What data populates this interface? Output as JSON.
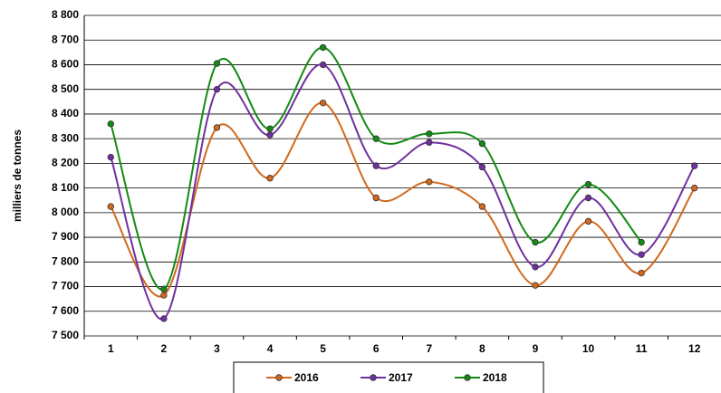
{
  "chart_data": {
    "type": "line",
    "y_label": "milliers de tonnes",
    "categories": [
      "1",
      "2",
      "3",
      "4",
      "5",
      "6",
      "7",
      "8",
      "9",
      "10",
      "11",
      "12"
    ],
    "series": [
      {
        "name": "2016",
        "color": "#d2691e",
        "values": [
          8025,
          7665,
          8345,
          8140,
          8445,
          8060,
          8125,
          8025,
          7705,
          7965,
          7755,
          8100
        ]
      },
      {
        "name": "2017",
        "color": "#7030a0",
        "values": [
          8225,
          7570,
          8500,
          8315,
          8600,
          8190,
          8285,
          8185,
          7780,
          8060,
          7830,
          8190
        ]
      },
      {
        "name": "2018",
        "color": "#138a13",
        "values": [
          8360,
          7690,
          8605,
          8340,
          8670,
          8300,
          8320,
          8280,
          7880,
          8115,
          7880,
          null
        ]
      }
    ],
    "ylim": [
      7500,
      8800
    ],
    "yticks": [
      {
        "value": 7500,
        "label": "7 500"
      },
      {
        "value": 7600,
        "label": "7 600"
      },
      {
        "value": 7700,
        "label": "7 700"
      },
      {
        "value": 7800,
        "label": "7 800"
      },
      {
        "value": 7900,
        "label": "7 900"
      },
      {
        "value": 8000,
        "label": "8 000"
      },
      {
        "value": 8100,
        "label": "8 100"
      },
      {
        "value": 8200,
        "label": "8 200"
      },
      {
        "value": 8300,
        "label": "8 300"
      },
      {
        "value": 8400,
        "label": "8 400"
      },
      {
        "value": 8500,
        "label": "8 500"
      },
      {
        "value": 8600,
        "label": "8 600"
      },
      {
        "value": 8700,
        "label": "8 700"
      },
      {
        "value": 8800,
        "label": "8 800"
      }
    ],
    "grid": true,
    "smooth": true,
    "legend": "bottom"
  }
}
